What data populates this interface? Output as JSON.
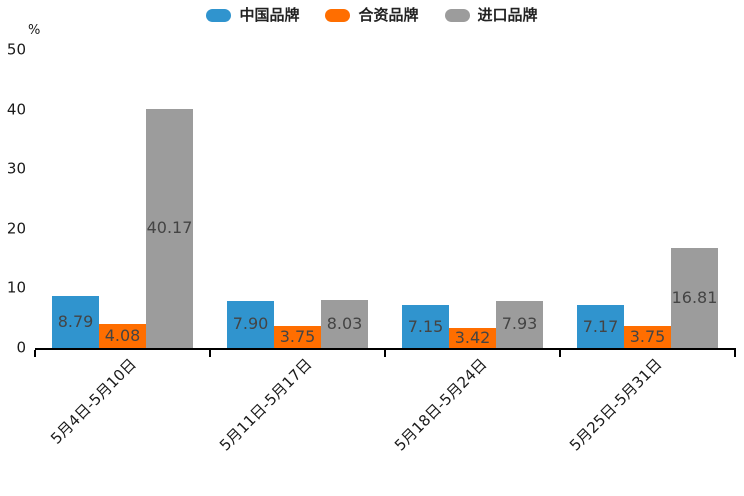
{
  "chart_data": {
    "type": "bar",
    "title": "",
    "unit_label": "%",
    "categories": [
      "5月4日-5月10日",
      "5月11日-5月17日",
      "5月18日-5月24日",
      "5月25日-5月31日"
    ],
    "series": [
      {
        "name": "中国品牌",
        "color": "#3094CE",
        "values": [
          8.79,
          7.9,
          7.15,
          7.17
        ]
      },
      {
        "name": "合资品牌",
        "color": "#FF6E00",
        "values": [
          4.08,
          3.75,
          3.42,
          3.75
        ]
      },
      {
        "name": "进口品牌",
        "color": "#9C9C9C",
        "values": [
          40.17,
          8.03,
          7.93,
          16.81
        ]
      }
    ],
    "value_label_decimals": 2,
    "value_label_position": "inside-center",
    "y_axis": {
      "ticks": [
        0,
        10,
        20,
        30,
        40,
        50
      ],
      "min": 0,
      "max": 50,
      "unit": "%"
    },
    "x_axis": {
      "label_rotation_deg": 45
    },
    "legend_position": "top-center",
    "grid": false,
    "colors": {
      "axis_line": "#000000",
      "tick_label": "#1a1a1a",
      "value_label": "#444444",
      "background": "#ffffff"
    }
  }
}
